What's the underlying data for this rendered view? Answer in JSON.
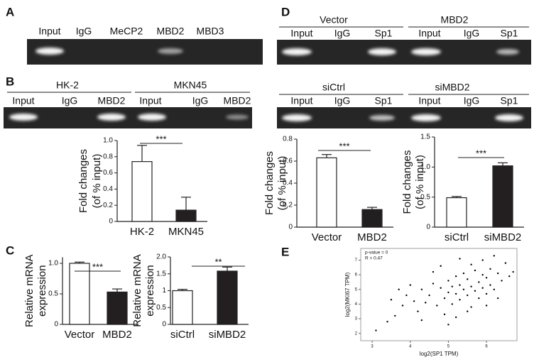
{
  "panel_labels": [
    "A",
    "B",
    "C",
    "D",
    "E"
  ],
  "gels": {
    "A": {
      "lanes": [
        "Input",
        "IgG",
        "MeCP2",
        "MBD2",
        "MBD3"
      ]
    },
    "B": {
      "groups": [
        "HK-2",
        "MKN45"
      ],
      "lanes": [
        "Input",
        "IgG",
        "MBD2",
        "Input",
        "IgG",
        "MBD2"
      ]
    },
    "D_top": {
      "groups": [
        "Vector",
        "MBD2"
      ],
      "lanes": [
        "Input",
        "IgG",
        "Sp1",
        "Input",
        "IgG",
        "Sp1"
      ]
    },
    "D_bottom": {
      "groups": [
        "siCtrl",
        "siMBD2"
      ],
      "lanes": [
        "Input",
        "IgG",
        "Sp1",
        "Input",
        "IgG",
        "Sp1"
      ]
    }
  },
  "chart_data": [
    {
      "type": "bar",
      "ylabel": [
        "Fold changes",
        "(of % input)"
      ],
      "categories": [
        "HK-2",
        "MKN45"
      ],
      "values": [
        0.74,
        0.14
      ],
      "errors": [
        0.2,
        0.16
      ],
      "colors": [
        "#ffffff",
        "#231f20"
      ],
      "ylim": [
        0,
        1
      ],
      "yticks": [
        0,
        0.2,
        0.4,
        0.6,
        0.8,
        {
          "value": 1,
          "label": "1.0"
        }
      ],
      "annotation": "***"
    },
    {
      "type": "bar",
      "ylabel": [
        "Relative mRNA",
        "expression"
      ],
      "categories": [
        "Vector",
        "MBD2"
      ],
      "values": [
        1.0,
        0.53
      ],
      "errors": [
        0.02,
        0.05
      ],
      "colors": [
        "#ffffff",
        "#231f20"
      ],
      "ylim": [
        0,
        1.1
      ],
      "yticks": [
        0,
        0.5,
        {
          "value": 1,
          "label": "1.0"
        }
      ],
      "annotation": "***"
    },
    {
      "type": "bar",
      "ylabel": [
        "Relative mRNA",
        "expression"
      ],
      "categories": [
        "siCtrl",
        "siMBD2"
      ],
      "values": [
        1.0,
        1.58
      ],
      "errors": [
        0.04,
        0.12
      ],
      "colors": [
        "#ffffff",
        "#231f20"
      ],
      "ylim": [
        0,
        2
      ],
      "yticks": [
        0,
        0.5,
        1,
        1.5,
        {
          "value": 2,
          "label": "2.0"
        }
      ],
      "annotation": "**"
    },
    {
      "type": "bar",
      "ylabel": [
        "Fold changes",
        "(of % input)"
      ],
      "categories": [
        "Vector",
        "MBD2"
      ],
      "values": [
        0.63,
        0.16
      ],
      "errors": [
        0.03,
        0.02
      ],
      "colors": [
        "#ffffff",
        "#231f20"
      ],
      "ylim": [
        0,
        0.8
      ],
      "yticks": [
        0,
        0.2,
        0.4,
        0.6,
        0.8
      ],
      "annotation": "***"
    },
    {
      "type": "bar",
      "ylabel": [
        "Fold changes",
        "(of % input)"
      ],
      "categories": [
        "siCtrl",
        "siMBD2"
      ],
      "values": [
        0.49,
        1.02
      ],
      "errors": [
        0.02,
        0.05
      ],
      "colors": [
        "#ffffff",
        "#231f20"
      ],
      "ylim": [
        0,
        1.5
      ],
      "yticks": [
        0,
        0.5,
        {
          "value": 1,
          "label": "1.0"
        },
        1.5
      ],
      "annotation": "***"
    },
    {
      "type": "scatter",
      "xlabel": "log2(SP1 TPM)",
      "ylabel": "log2(MKI67 TPM)",
      "annotations": [
        "p-value = 0",
        "R = 0.47"
      ],
      "color": "#000000",
      "x": [
        4.1,
        4.3,
        4.5,
        4.6,
        4.7,
        4.8,
        4.9,
        5.0,
        5.0,
        5.1,
        5.1,
        5.2,
        5.2,
        5.3,
        5.3,
        5.4,
        5.4,
        5.5,
        5.5,
        5.6,
        5.6,
        5.7,
        5.7,
        5.8,
        5.8,
        5.9,
        5.9,
        6.0,
        6.0,
        6.1,
        6.1,
        6.2,
        6.3,
        6.4,
        6.5,
        4.2,
        4.4,
        3.9,
        3.8,
        3.6,
        3.5,
        4.0,
        4.6,
        4.9,
        5.2,
        5.6,
        6.3,
        6.6,
        3.4,
        3.1,
        4.8,
        5.3,
        5.9,
        6.2,
        4.3,
        5.0,
        6.7,
        3.7,
        5.5,
        6.0
      ],
      "values": [
        4.2,
        5.0,
        4.6,
        5.4,
        3.9,
        5.1,
        4.4,
        5.6,
        4.8,
        5.2,
        4.0,
        5.9,
        4.7,
        5.3,
        4.3,
        6.1,
        5.0,
        4.6,
        5.7,
        5.2,
        3.8,
        6.3,
        4.9,
        5.5,
        4.4,
        6.0,
        5.1,
        5.8,
        4.7,
        6.4,
        5.3,
        5.0,
        6.1,
        5.6,
        6.8,
        3.5,
        4.1,
        4.6,
        3.9,
        3.2,
        4.3,
        5.3,
        6.2,
        3.3,
        3.1,
        6.7,
        4.4,
        5.9,
        2.8,
        2.2,
        6.6,
        7.1,
        7.0,
        7.3,
        2.9,
        2.6,
        6.2,
        5.0,
        3.5,
        3.9
      ],
      "xlim": [
        2.7,
        6.8
      ],
      "ylim": [
        1.5,
        7.8
      ],
      "xticks": [
        3,
        4,
        5,
        6
      ],
      "yticks": [
        2,
        3,
        4,
        5,
        6,
        7
      ]
    }
  ]
}
